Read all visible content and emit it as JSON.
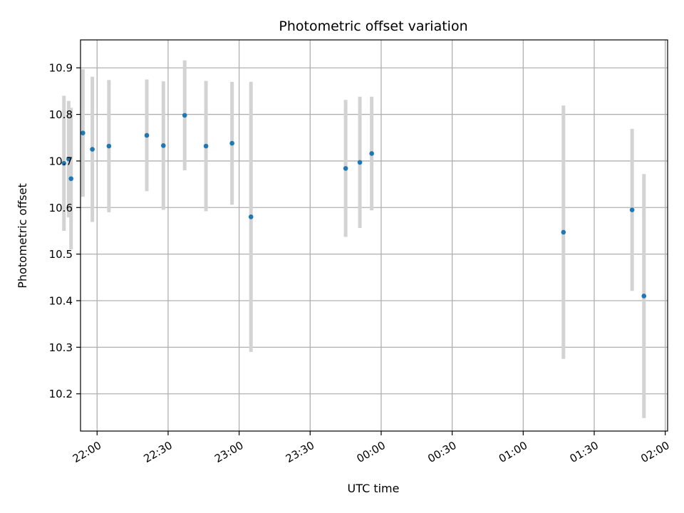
{
  "chart_data": {
    "type": "scatter",
    "title": "Photometric offset variation",
    "xlabel": "UTC time",
    "ylabel": "Photometric offset",
    "x_ticks": [
      "22:00",
      "22:30",
      "23:00",
      "23:30",
      "00:00",
      "00:30",
      "01:00",
      "01:30",
      "02:00"
    ],
    "y_ticks": [
      "10.2",
      "10.3",
      "10.4",
      "10.5",
      "10.6",
      "10.7",
      "10.8",
      "10.9"
    ],
    "ylim": [
      10.12,
      10.96
    ],
    "xlim": [
      "21:53",
      "02:01"
    ],
    "grid": true,
    "colors": {
      "points": "#1f77b4",
      "errorbars": "#d3d3d3",
      "grid": "#b0b0b0"
    },
    "points": [
      {
        "x": "21:46",
        "y": 10.695,
        "err": 0.145
      },
      {
        "x": "21:48",
        "y": 10.704,
        "err": 0.125
      },
      {
        "x": "21:49",
        "y": 10.662,
        "err": 0.152
      },
      {
        "x": "21:54",
        "y": 10.76,
        "err": 0.137
      },
      {
        "x": "21:58",
        "y": 10.725,
        "err": 0.156
      },
      {
        "x": "22:05",
        "y": 10.732,
        "err": 0.142
      },
      {
        "x": "22:21",
        "y": 10.755,
        "err": 0.12
      },
      {
        "x": "22:28",
        "y": 10.733,
        "err": 0.138
      },
      {
        "x": "22:37",
        "y": 10.798,
        "err": 0.118
      },
      {
        "x": "22:46",
        "y": 10.732,
        "err": 0.14
      },
      {
        "x": "22:57",
        "y": 10.738,
        "err": 0.132
      },
      {
        "x": "23:05",
        "y": 10.58,
        "err": 0.29
      },
      {
        "x": "23:45",
        "y": 10.684,
        "err": 0.147
      },
      {
        "x": "23:51",
        "y": 10.697,
        "err": 0.141
      },
      {
        "x": "23:56",
        "y": 10.716,
        "err": 0.122
      },
      {
        "x": "01:17",
        "y": 10.547,
        "err": 0.272
      },
      {
        "x": "01:46",
        "y": 10.595,
        "err": 0.174
      },
      {
        "x": "01:51",
        "y": 10.41,
        "err": 0.262
      }
    ]
  }
}
